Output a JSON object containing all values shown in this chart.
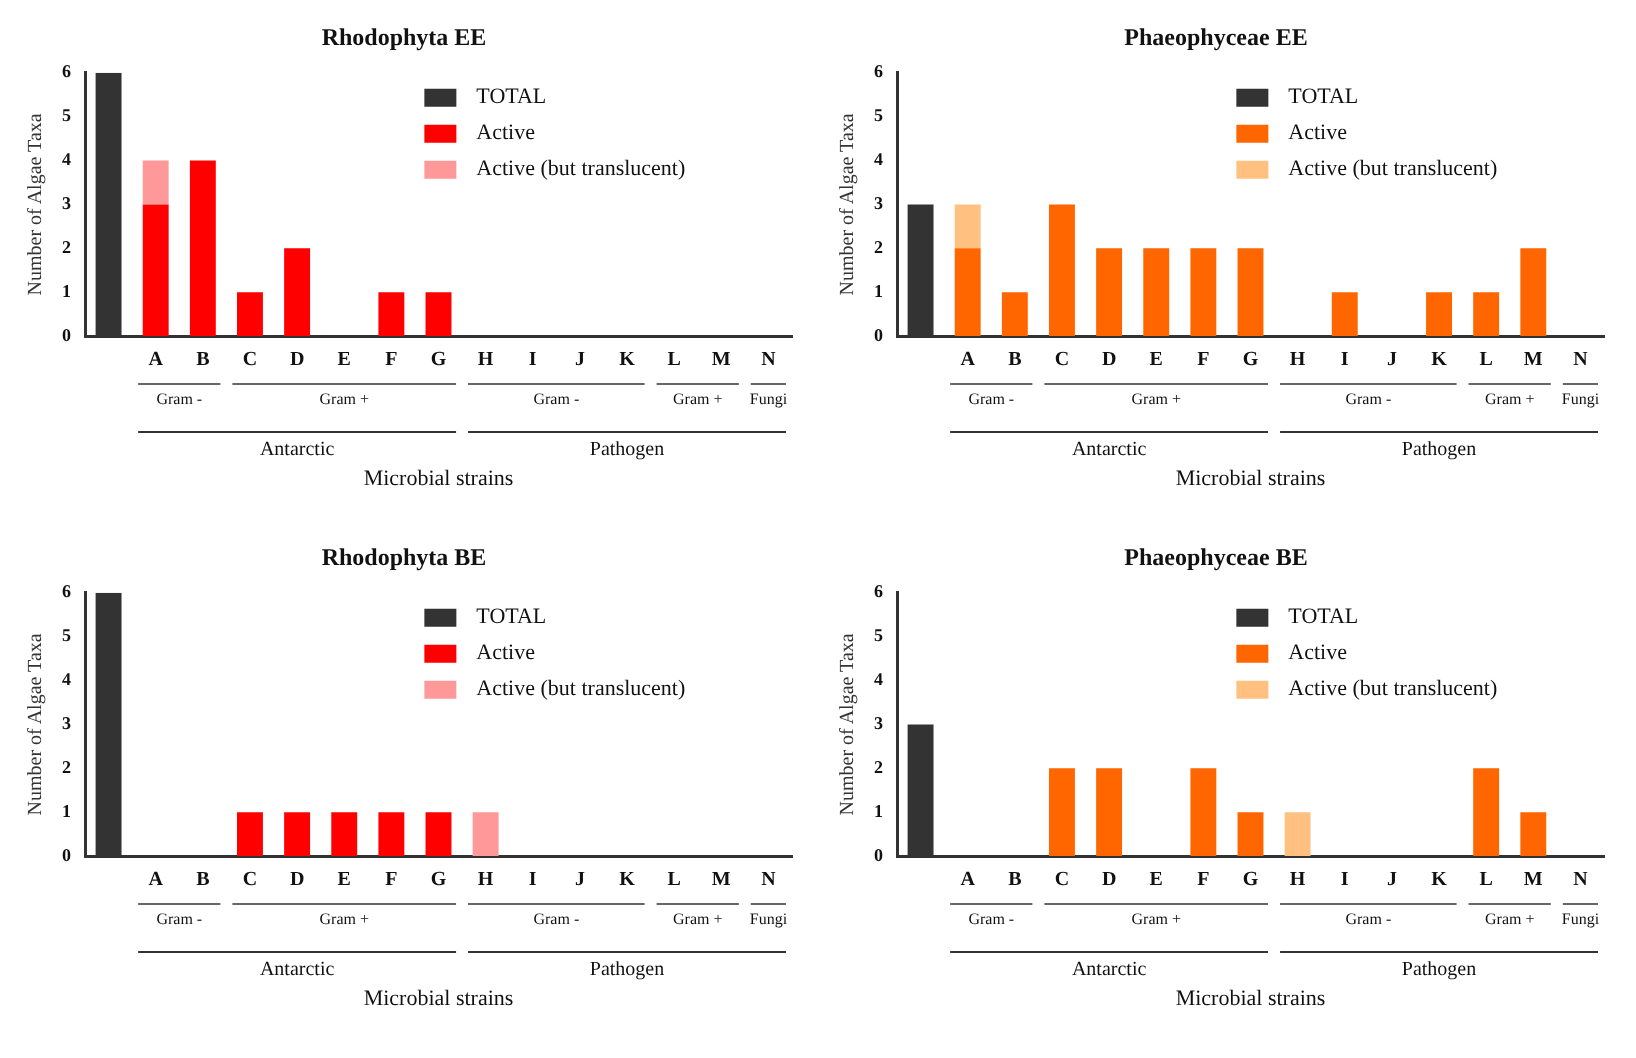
{
  "chart_data": [
    {
      "type": "bar",
      "title": "Rhodophyta EE",
      "xlabel": "Microbial strains",
      "ylabel": "Number of Algae Taxa",
      "categories": [
        null,
        "A",
        "B",
        "C",
        "D",
        "E",
        "F",
        "G",
        "H",
        "I",
        "J",
        "K",
        "L",
        "M",
        "N"
      ],
      "series": [
        {
          "name": "TOTAL",
          "color": "#333333",
          "values": [
            6,
            null,
            null,
            null,
            null,
            null,
            null,
            null,
            null,
            null,
            null,
            null,
            null,
            null,
            null
          ]
        },
        {
          "name": "Active",
          "color": "#ff0000",
          "values": [
            null,
            3,
            4,
            1,
            2,
            null,
            1,
            1,
            null,
            null,
            null,
            null,
            null,
            null,
            null
          ]
        },
        {
          "name": "Active (but translucent)",
          "color": "#ff9999",
          "values": [
            null,
            1,
            null,
            null,
            null,
            null,
            null,
            null,
            null,
            null,
            null,
            null,
            null,
            null,
            null
          ]
        }
      ],
      "stacked": true,
      "ylim": [
        0,
        6
      ],
      "yticks": [
        0,
        1,
        2,
        3,
        4,
        5,
        6
      ],
      "grid": false,
      "legend": "top right",
      "annotations": [
        "Gram -",
        "Gram +",
        "Gram -",
        "Gram +",
        "Fungi",
        "Antarctic",
        "Pathogen"
      ]
    },
    {
      "type": "bar",
      "title": "Phaeophyceae EE",
      "xlabel": "Microbial strains",
      "ylabel": "Number of Algae Taxa",
      "categories": [
        null,
        "A",
        "B",
        "C",
        "D",
        "E",
        "F",
        "G",
        "H",
        "I",
        "J",
        "K",
        "L",
        "M",
        "N"
      ],
      "series": [
        {
          "name": "TOTAL",
          "color": "#333333",
          "values": [
            3,
            null,
            null,
            null,
            null,
            null,
            null,
            null,
            null,
            null,
            null,
            null,
            null,
            null,
            null
          ]
        },
        {
          "name": "Active",
          "color": "#ff6600",
          "values": [
            null,
            2,
            1,
            3,
            2,
            2,
            2,
            2,
            null,
            1,
            null,
            1,
            1,
            2,
            null
          ]
        },
        {
          "name": "Active (but translucent)",
          "color": "#ffc080",
          "values": [
            null,
            1,
            null,
            null,
            null,
            null,
            null,
            null,
            null,
            null,
            null,
            null,
            null,
            null,
            null
          ]
        }
      ],
      "stacked": true,
      "ylim": [
        0,
        6
      ],
      "yticks": [
        0,
        1,
        2,
        3,
        4,
        5,
        6
      ],
      "grid": false,
      "legend": "top right",
      "annotations": [
        "Gram -",
        "Gram +",
        "Gram -",
        "Gram +",
        "Fungi",
        "Antarctic",
        "Pathogen"
      ]
    },
    {
      "type": "bar",
      "title": "Rhodophyta BE",
      "xlabel": "Microbial strains",
      "ylabel": "Number of Algae Taxa",
      "categories": [
        null,
        "A",
        "B",
        "C",
        "D",
        "E",
        "F",
        "G",
        "H",
        "I",
        "J",
        "K",
        "L",
        "M",
        "N"
      ],
      "series": [
        {
          "name": "TOTAL",
          "color": "#333333",
          "values": [
            6,
            null,
            null,
            null,
            null,
            null,
            null,
            null,
            null,
            null,
            null,
            null,
            null,
            null,
            null
          ]
        },
        {
          "name": "Active",
          "color": "#ff0000",
          "values": [
            null,
            null,
            null,
            1,
            1,
            1,
            1,
            1,
            null,
            null,
            null,
            null,
            null,
            null,
            null
          ]
        },
        {
          "name": "Active (but translucent)",
          "color": "#ff9999",
          "values": [
            null,
            null,
            null,
            null,
            null,
            null,
            null,
            null,
            1,
            null,
            null,
            null,
            null,
            null,
            null
          ]
        }
      ],
      "stacked": true,
      "ylim": [
        0,
        6
      ],
      "yticks": [
        0,
        1,
        2,
        3,
        4,
        5,
        6
      ],
      "grid": false,
      "legend": "top right",
      "annotations": [
        "Gram -",
        "Gram +",
        "Gram -",
        "Gram +",
        "Fungi",
        "Antarctic",
        "Pathogen"
      ]
    },
    {
      "type": "bar",
      "title": "Phaeophyceae BE",
      "xlabel": "Microbial strains",
      "ylabel": "Number of Algae Taxa",
      "categories": [
        null,
        "A",
        "B",
        "C",
        "D",
        "E",
        "F",
        "G",
        "H",
        "I",
        "J",
        "K",
        "L",
        "M",
        "N"
      ],
      "series": [
        {
          "name": "TOTAL",
          "color": "#333333",
          "values": [
            3,
            null,
            null,
            null,
            null,
            null,
            null,
            null,
            null,
            null,
            null,
            null,
            null,
            null,
            null
          ]
        },
        {
          "name": "Active",
          "color": "#ff6600",
          "values": [
            null,
            null,
            null,
            2,
            2,
            null,
            2,
            1,
            null,
            null,
            null,
            null,
            2,
            1,
            null
          ]
        },
        {
          "name": "Active (but translucent)",
          "color": "#ffc080",
          "values": [
            null,
            null,
            null,
            null,
            null,
            null,
            null,
            null,
            1,
            null,
            null,
            null,
            null,
            null,
            null
          ]
        }
      ],
      "stacked": true,
      "ylim": [
        0,
        6
      ],
      "yticks": [
        0,
        1,
        2,
        3,
        4,
        5,
        6
      ],
      "grid": false,
      "legend": "top right",
      "annotations": [
        "Gram -",
        "Gram +",
        "Gram -",
        "Gram +",
        "Fungi",
        "Antarctic",
        "Pathogen"
      ]
    }
  ]
}
